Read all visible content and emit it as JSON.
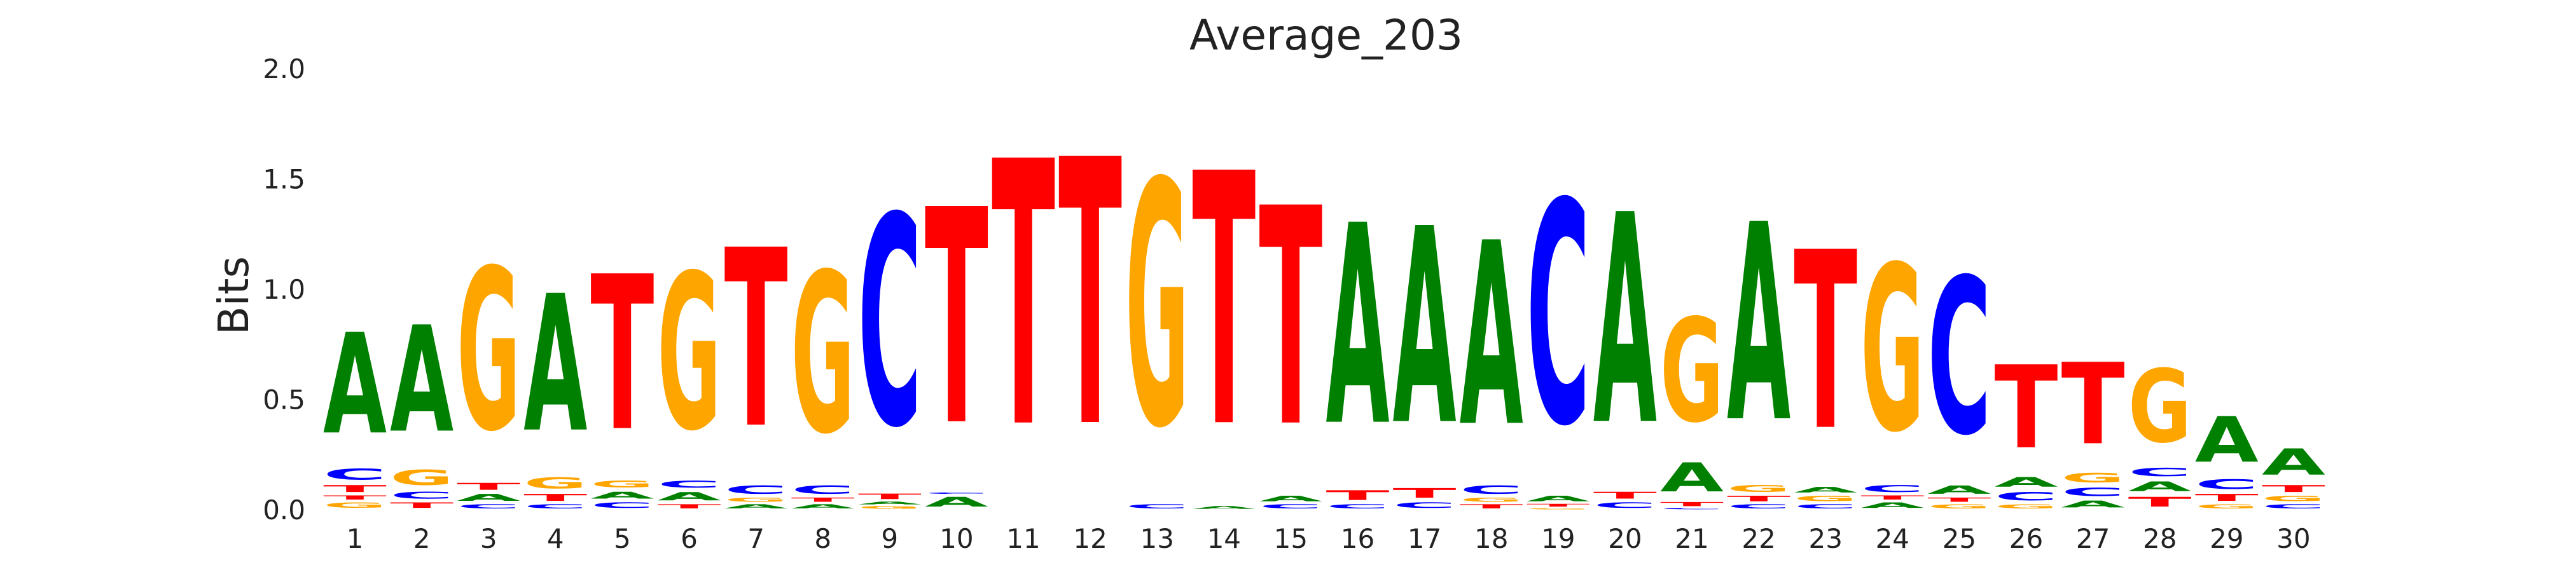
{
  "chart_data": {
    "type": "sequence_logo",
    "title": "Average_203",
    "xlabel": "",
    "ylabel": "Bits",
    "ylim": [
      0,
      2.0
    ],
    "yticks": [
      "0.0",
      "0.5",
      "1.0",
      "1.5",
      "2.0"
    ],
    "grid": false,
    "colors": {
      "A": "#008000",
      "C": "#0000ff",
      "G": "#ffa500",
      "T": "#ff0000"
    },
    "positions": [
      {
        "x": "1",
        "stack": [
          [
            "G",
            0.04
          ],
          [
            "T",
            0.03
          ],
          [
            "T",
            0.05
          ],
          [
            "C",
            0.08
          ],
          [
            "A",
            0.73
          ]
        ]
      },
      {
        "x": "2",
        "stack": [
          [
            "T",
            0.04
          ],
          [
            "C",
            0.05
          ],
          [
            "G",
            0.11
          ],
          [
            "A",
            0.77
          ]
        ]
      },
      {
        "x": "3",
        "stack": [
          [
            "C",
            0.03
          ],
          [
            "A",
            0.05
          ],
          [
            "T",
            0.05
          ],
          [
            "G",
            1.17
          ]
        ]
      },
      {
        "x": "4",
        "stack": [
          [
            "C",
            0.03
          ],
          [
            "T",
            0.05
          ],
          [
            "G",
            0.08
          ],
          [
            "A",
            0.99
          ]
        ]
      },
      {
        "x": "5",
        "stack": [
          [
            "C",
            0.04
          ],
          [
            "A",
            0.05
          ],
          [
            "G",
            0.05
          ],
          [
            "T",
            1.12
          ]
        ]
      },
      {
        "x": "6",
        "stack": [
          [
            "T",
            0.03
          ],
          [
            "A",
            0.06
          ],
          [
            "C",
            0.05
          ],
          [
            "G",
            1.13
          ]
        ]
      },
      {
        "x": "7",
        "stack": [
          [
            "A",
            0.03
          ],
          [
            "G",
            0.03
          ],
          [
            "C",
            0.06
          ],
          [
            "T",
            1.29
          ]
        ]
      },
      {
        "x": "8",
        "stack": [
          [
            "A",
            0.03
          ],
          [
            "T",
            0.03
          ],
          [
            "C",
            0.06
          ],
          [
            "G",
            1.16
          ]
        ]
      },
      {
        "x": "9",
        "stack": [
          [
            "G",
            0.02
          ],
          [
            "A",
            0.02
          ],
          [
            "T",
            0.04
          ],
          [
            "C",
            1.52
          ]
        ]
      },
      {
        "x": "10",
        "stack": [
          [
            "A",
            0.07
          ],
          [
            "C",
            0.01
          ],
          [
            "T",
            1.56
          ]
        ]
      },
      {
        "x": "11",
        "stack": [
          [
            "T",
            1.92
          ]
        ]
      },
      {
        "x": "12",
        "stack": [
          [
            "T",
            1.93
          ]
        ]
      },
      {
        "x": "13",
        "stack": [
          [
            "C",
            0.03
          ],
          [
            "G",
            1.77
          ]
        ]
      },
      {
        "x": "14",
        "stack": [
          [
            "A",
            0.02
          ],
          [
            "T",
            1.83
          ]
        ]
      },
      {
        "x": "15",
        "stack": [
          [
            "C",
            0.03
          ],
          [
            "A",
            0.04
          ],
          [
            "T",
            1.58
          ]
        ]
      },
      {
        "x": "16",
        "stack": [
          [
            "C",
            0.03
          ],
          [
            "T",
            0.07
          ],
          [
            "A",
            1.45
          ]
        ]
      },
      {
        "x": "17",
        "stack": [
          [
            "C",
            0.04
          ],
          [
            "T",
            0.07
          ],
          [
            "A",
            1.42
          ]
        ]
      },
      {
        "x": "18",
        "stack": [
          [
            "T",
            0.03
          ],
          [
            "G",
            0.03
          ],
          [
            "C",
            0.06
          ],
          [
            "A",
            1.33
          ]
        ]
      },
      {
        "x": "19",
        "stack": [
          [
            "G",
            0.01
          ],
          [
            "T",
            0.02
          ],
          [
            "A",
            0.04
          ],
          [
            "C",
            1.61
          ]
        ]
      },
      {
        "x": "20",
        "stack": [
          [
            "C",
            0.04
          ],
          [
            "T",
            0.05
          ],
          [
            "A",
            1.52
          ]
        ]
      },
      {
        "x": "21",
        "stack": [
          [
            "C",
            0.01
          ],
          [
            "T",
            0.03
          ],
          [
            "A",
            0.21
          ],
          [
            "G",
            0.75
          ]
        ]
      },
      {
        "x": "22",
        "stack": [
          [
            "C",
            0.03
          ],
          [
            "T",
            0.04
          ],
          [
            "G",
            0.05
          ],
          [
            "A",
            1.43
          ]
        ]
      },
      {
        "x": "23",
        "stack": [
          [
            "C",
            0.03
          ],
          [
            "G",
            0.04
          ],
          [
            "A",
            0.04
          ],
          [
            "T",
            1.29
          ]
        ]
      },
      {
        "x": "24",
        "stack": [
          [
            "A",
            0.04
          ],
          [
            "T",
            0.03
          ],
          [
            "C",
            0.05
          ],
          [
            "G",
            1.2
          ]
        ]
      },
      {
        "x": "25",
        "stack": [
          [
            "G",
            0.03
          ],
          [
            "T",
            0.03
          ],
          [
            "A",
            0.06
          ],
          [
            "C",
            1.13
          ]
        ]
      },
      {
        "x": "26",
        "stack": [
          [
            "G",
            0.03
          ],
          [
            "C",
            0.06
          ],
          [
            "A",
            0.07
          ],
          [
            "T",
            0.6
          ]
        ]
      },
      {
        "x": "27",
        "stack": [
          [
            "A",
            0.05
          ],
          [
            "C",
            0.06
          ],
          [
            "G",
            0.07
          ],
          [
            "T",
            0.59
          ]
        ]
      },
      {
        "x": "28",
        "stack": [
          [
            "T",
            0.07
          ],
          [
            "A",
            0.07
          ],
          [
            "C",
            0.06
          ],
          [
            "G",
            0.53
          ]
        ]
      },
      {
        "x": "29",
        "stack": [
          [
            "G",
            0.03
          ],
          [
            "T",
            0.05
          ],
          [
            "C",
            0.07
          ],
          [
            "A",
            0.33
          ]
        ]
      },
      {
        "x": "30",
        "stack": [
          [
            "C",
            0.03
          ],
          [
            "G",
            0.04
          ],
          [
            "T",
            0.05
          ],
          [
            "A",
            0.19
          ]
        ]
      }
    ]
  }
}
